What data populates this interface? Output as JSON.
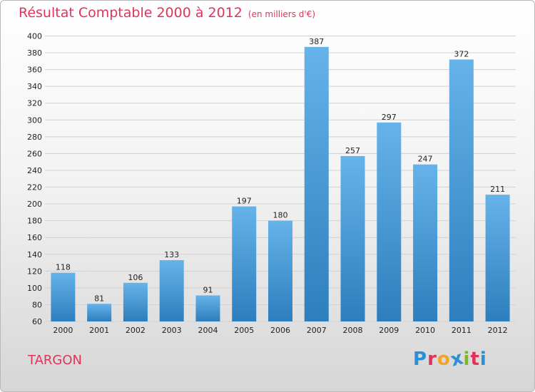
{
  "title": "Résultat Comptable 2000 à 2012",
  "subtitle": "(en milliers d'€)",
  "commune": "TARGON",
  "logo": {
    "letters": [
      "P",
      "r",
      "o",
      "x",
      "i",
      "t",
      "i"
    ],
    "colors": [
      "#2b8fd6",
      "#e0335a",
      "#f3a32a",
      "#2b8fd6",
      "#7ab829",
      "#e0335a",
      "#2b8fd6"
    ]
  },
  "colors": {
    "bar_light": "#66b3ea",
    "bar_dark": "#2d7ebd",
    "grid": "#d2d2d2",
    "axis_text": "#222222",
    "accent": "#e0335a"
  },
  "chart_data": {
    "type": "bar",
    "categories": [
      "2000",
      "2001",
      "2002",
      "2003",
      "2004",
      "2005",
      "2006",
      "2007",
      "2008",
      "2009",
      "2010",
      "2011",
      "2012"
    ],
    "values": [
      118,
      81,
      106,
      133,
      91,
      197,
      180,
      387,
      257,
      297,
      247,
      372,
      211
    ],
    "ylim": [
      60,
      400
    ],
    "yticks": [
      60,
      80,
      100,
      120,
      140,
      160,
      180,
      200,
      220,
      240,
      260,
      280,
      300,
      320,
      340,
      360,
      380,
      400
    ],
    "grid": true,
    "data_labels": true
  }
}
